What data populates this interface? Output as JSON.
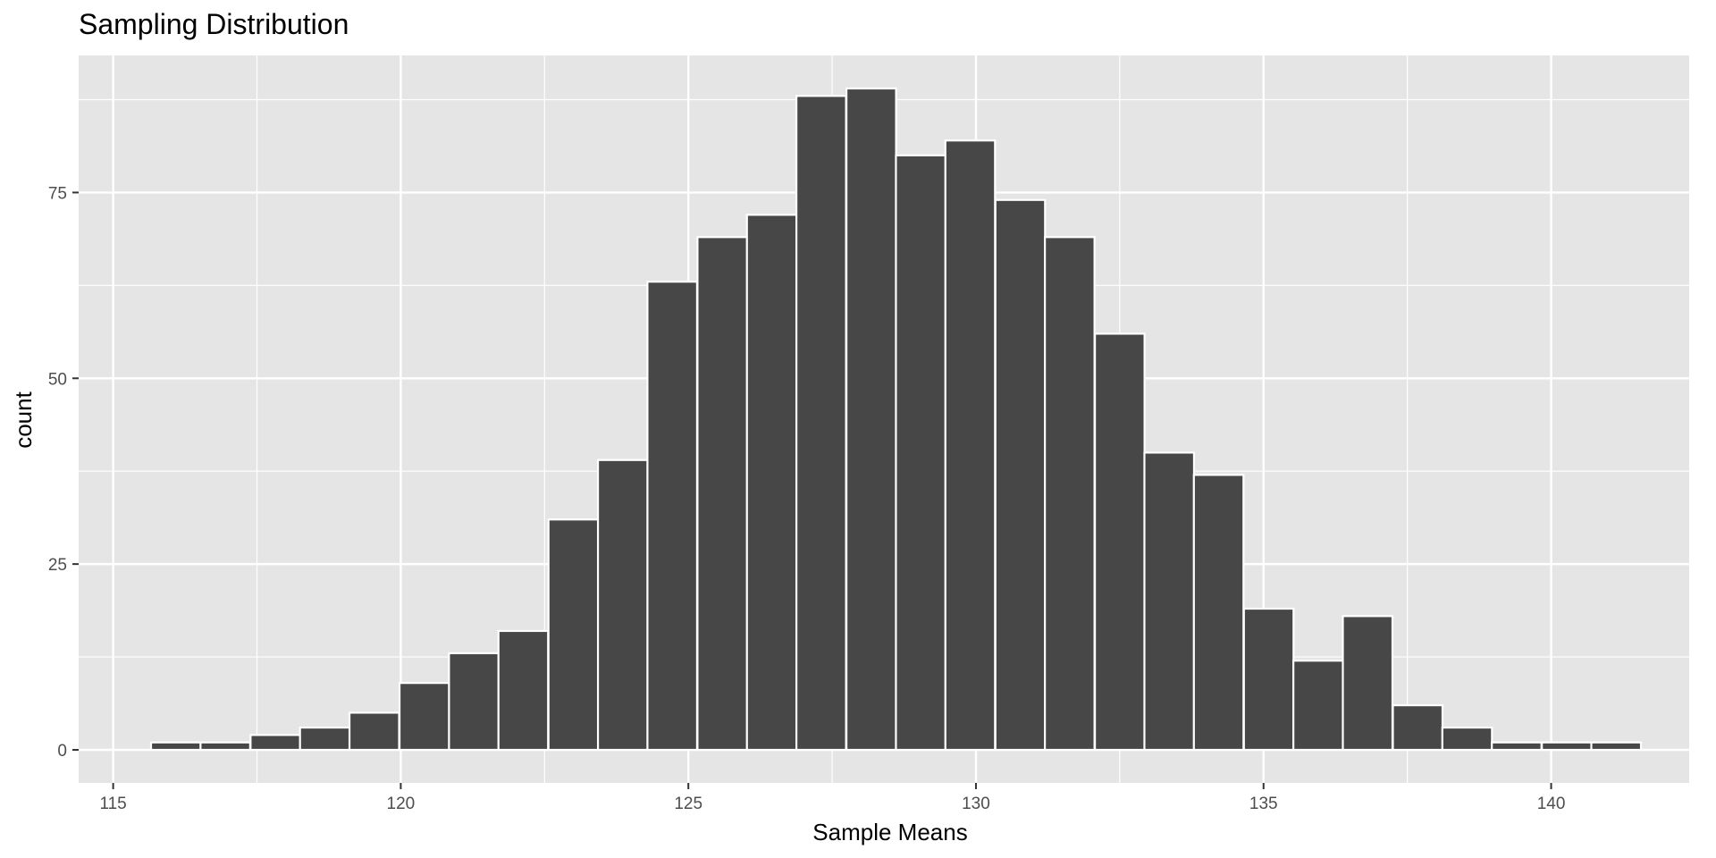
{
  "chart_data": {
    "type": "bar",
    "title": "Sampling Distribution",
    "xlabel": "Sample Means",
    "ylabel": "count",
    "xlim": [
      114.4,
      142.4
    ],
    "ylim": [
      -4.45,
      93.45
    ],
    "x_ticks": [
      115,
      120,
      125,
      130,
      135,
      140
    ],
    "y_ticks": [
      0,
      25,
      50,
      75
    ],
    "bin_width": 0.8626,
    "bin_centers": [
      116.09,
      116.95,
      117.82,
      118.68,
      119.54,
      120.41,
      121.27,
      122.13,
      123.0,
      123.86,
      124.72,
      125.59,
      126.45,
      127.31,
      128.18,
      129.04,
      129.9,
      130.77,
      131.63,
      132.5,
      133.36,
      134.22,
      135.09,
      135.95,
      136.81,
      137.68,
      138.54,
      139.4,
      140.27,
      141.13
    ],
    "values": [
      1,
      1,
      2,
      3,
      5,
      9,
      13,
      16,
      31,
      39,
      63,
      69,
      72,
      88,
      89,
      80,
      82,
      74,
      69,
      56,
      40,
      37,
      19,
      12,
      18,
      6,
      3,
      1,
      1,
      1
    ],
    "grid": true,
    "colors": {
      "panel_background": "#e5e5e5",
      "grid_line": "#ffffff",
      "bar_fill": "#474747",
      "bar_outline": "#ffffff",
      "tick_text": "#4d4d4d",
      "tick_mark": "#333333"
    }
  }
}
